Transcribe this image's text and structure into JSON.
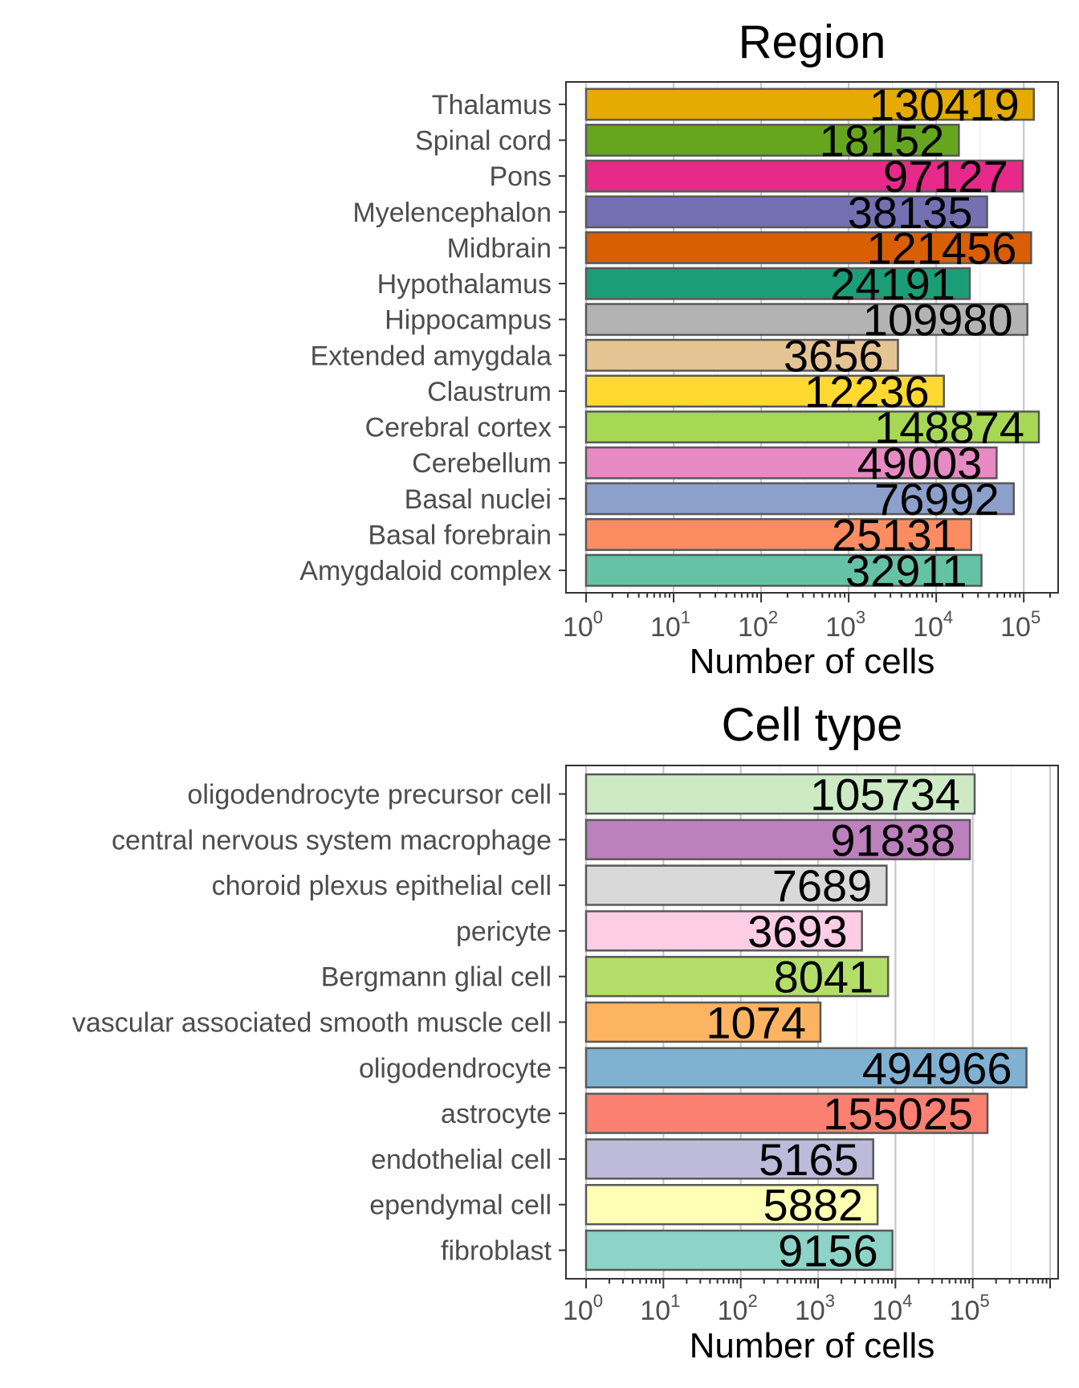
{
  "chart_data": [
    {
      "type": "bar",
      "orientation": "horizontal",
      "title": "Region",
      "xlabel": "Number of cells",
      "ylabel": "",
      "xscale": "log10",
      "xlim": [
        1,
        200000
      ],
      "x_ticks": [
        1,
        10,
        100,
        1000,
        10000,
        100000
      ],
      "x_tick_labels": [
        {
          "base": "10",
          "exp": "0"
        },
        {
          "base": "10",
          "exp": "1"
        },
        {
          "base": "10",
          "exp": "2"
        },
        {
          "base": "10",
          "exp": "3"
        },
        {
          "base": "10",
          "exp": "4"
        },
        {
          "base": "10",
          "exp": "5"
        }
      ],
      "grid": true,
      "legend": "none",
      "categories": [
        "Thalamus",
        "Spinal cord",
        "Pons",
        "Myelencephalon",
        "Midbrain",
        "Hypothalamus",
        "Hippocampus",
        "Extended amygdala",
        "Claustrum",
        "Cerebral cortex",
        "Cerebellum",
        "Basal nuclei",
        "Basal forebrain",
        "Amygdaloid complex"
      ],
      "values": [
        130419,
        18152,
        97127,
        38135,
        121456,
        24191,
        109980,
        3656,
        12236,
        148874,
        49003,
        76992,
        25131,
        32911
      ],
      "value_labels": [
        "130419",
        "18152",
        "97127",
        "38135",
        "121456",
        "24191",
        "109980",
        "3656",
        "12236",
        "148874",
        "49003",
        "76992",
        "25131",
        "32911"
      ],
      "colors": [
        "#E6AB02",
        "#66A61E",
        "#E7298A",
        "#7570B3",
        "#D95F02",
        "#1B9E77",
        "#B3B3B3",
        "#E5C494",
        "#FFD92F",
        "#A6D854",
        "#E78AC3",
        "#8DA0CB",
        "#FC8D62",
        "#66C2A5"
      ]
    },
    {
      "type": "bar",
      "orientation": "horizontal",
      "title": "Cell type",
      "xlabel": "Number of cells",
      "ylabel": "",
      "xscale": "log10",
      "xlim": [
        1,
        1000000
      ],
      "x_ticks": [
        1,
        10,
        100,
        1000,
        10000,
        100000
      ],
      "x_tick_labels": [
        {
          "base": "10",
          "exp": "0"
        },
        {
          "base": "10",
          "exp": "1"
        },
        {
          "base": "10",
          "exp": "2"
        },
        {
          "base": "10",
          "exp": "3"
        },
        {
          "base": "10",
          "exp": "4"
        },
        {
          "base": "10",
          "exp": "5"
        }
      ],
      "grid": true,
      "legend": "none",
      "categories": [
        "oligodendrocyte precursor cell",
        "central nervous system macrophage",
        "choroid plexus epithelial cell",
        "pericyte",
        "Bergmann glial cell",
        "vascular associated smooth muscle cell",
        "oligodendrocyte",
        "astrocyte",
        "endothelial cell",
        "ependymal cell",
        "fibroblast"
      ],
      "values": [
        105734,
        91838,
        7689,
        3693,
        8041,
        1074,
        494966,
        155025,
        5165,
        5882,
        9156
      ],
      "value_labels": [
        "105734",
        "91838",
        "7689",
        "3693",
        "8041",
        "1074",
        "494966",
        "155025",
        "5165",
        "5882",
        "9156"
      ],
      "colors": [
        "#CCEBC5",
        "#BC80BD",
        "#D9D9D9",
        "#FCCDE5",
        "#B3DE69",
        "#FDB462",
        "#80B1D3",
        "#FB8072",
        "#BEBADA",
        "#FFFFB3",
        "#8DD3C7"
      ]
    }
  ]
}
